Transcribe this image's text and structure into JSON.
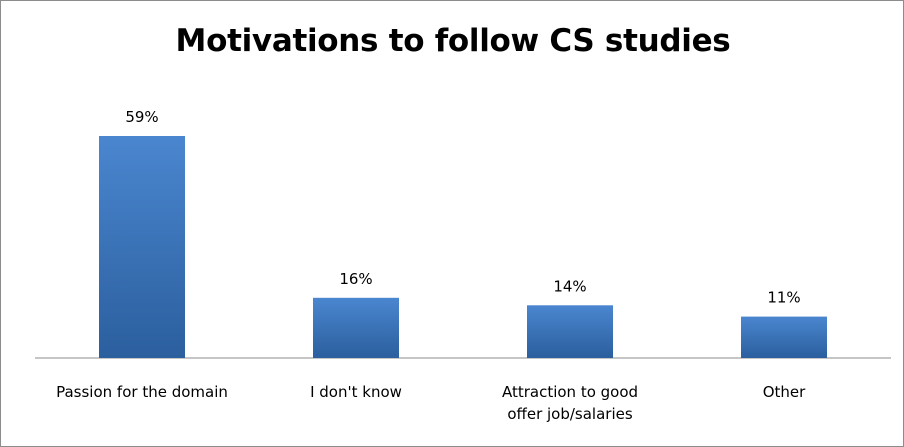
{
  "chart_data": {
    "type": "bar",
    "title": "Motivations to follow CS studies",
    "categories": [
      [
        "Passion for the domain"
      ],
      [
        "I don't know"
      ],
      [
        "Attraction to good",
        "offer job/salaries"
      ],
      [
        "Other"
      ]
    ],
    "values": [
      59,
      16,
      14,
      11
    ],
    "value_labels": [
      "59%",
      "16%",
      "14%",
      "11%"
    ],
    "xlabel": "",
    "ylabel": "",
    "ylim": [
      0,
      60
    ],
    "grid": false,
    "legend": "none",
    "colors": {
      "bar_top": "#4a86cf",
      "bar_bottom": "#2b5f9e",
      "axis": "#8c8c8c"
    }
  }
}
